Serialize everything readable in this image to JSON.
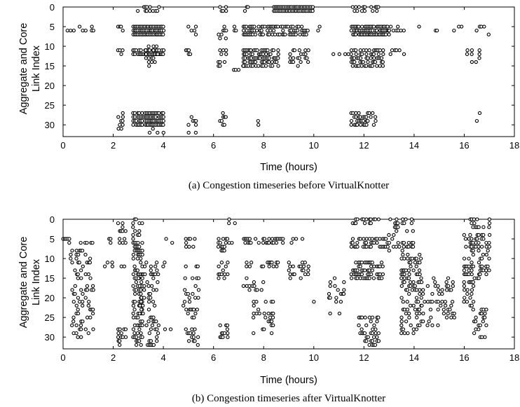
{
  "chart_data": [
    {
      "type": "scatter",
      "caption": "(a) Congestion timeseries before VirtualKnotter",
      "xlabel": "Time (hours)",
      "ylabel_lines": [
        "Aggregate and Core",
        "Link Index"
      ],
      "xlim": [
        0,
        18
      ],
      "ylim": [
        0,
        33
      ],
      "y_inverted": true,
      "grid": false,
      "x_ticks": [
        "0",
        "2",
        "4",
        "6",
        "8",
        "10",
        "12",
        "14",
        "16",
        "18"
      ],
      "y_ticks": [
        "0",
        "5",
        "10",
        "15",
        "20",
        "25",
        "30"
      ],
      "clusters": [
        [
          0.0,
          0.45,
          5,
          6,
          2
        ],
        [
          0.6,
          1.2,
          5,
          6,
          2
        ],
        [
          1.6,
          1.8,
          6,
          6,
          1
        ],
        [
          2.2,
          2.4,
          5,
          6,
          4
        ],
        [
          2.2,
          2.4,
          11,
          12,
          4
        ],
        [
          2.2,
          2.4,
          27,
          31,
          3
        ],
        [
          2.8,
          4.0,
          0,
          1,
          3
        ],
        [
          2.8,
          4.0,
          5,
          7,
          10
        ],
        [
          2.8,
          4.0,
          11,
          12,
          9
        ],
        [
          2.8,
          4.0,
          27,
          30,
          9
        ],
        [
          3.3,
          3.8,
          10,
          15,
          3
        ],
        [
          3.4,
          4.0,
          31,
          32,
          1
        ],
        [
          5.0,
          5.3,
          5,
          7,
          3
        ],
        [
          4.9,
          5.3,
          11,
          12,
          3
        ],
        [
          5.0,
          5.3,
          28,
          32,
          2
        ],
        [
          6.2,
          6.5,
          0,
          1,
          3
        ],
        [
          6.2,
          6.5,
          5,
          8,
          3
        ],
        [
          6.2,
          6.5,
          11,
          15,
          3
        ],
        [
          6.2,
          6.5,
          27,
          30,
          3
        ],
        [
          6.6,
          7.0,
          5,
          6,
          2
        ],
        [
          6.7,
          7.3,
          15,
          17,
          2
        ],
        [
          7.2,
          7.5,
          0,
          1,
          3
        ],
        [
          7.2,
          8.8,
          5,
          7,
          6
        ],
        [
          7.2,
          8.6,
          11,
          15,
          5
        ],
        [
          7.6,
          7.8,
          28,
          30,
          2
        ],
        [
          8.4,
          10.0,
          0,
          1,
          10
        ],
        [
          8.8,
          9.8,
          5,
          7,
          5
        ],
        [
          9.0,
          9.8,
          11,
          15,
          3
        ],
        [
          10.0,
          10.3,
          5,
          6,
          2
        ],
        [
          10.6,
          11.4,
          12,
          12,
          3
        ],
        [
          11.5,
          12.6,
          0,
          1,
          4
        ],
        [
          11.5,
          13.0,
          5,
          7,
          8
        ],
        [
          11.5,
          12.8,
          11,
          15,
          6
        ],
        [
          11.5,
          12.5,
          27,
          30,
          5
        ],
        [
          13.0,
          13.7,
          5,
          6,
          3
        ],
        [
          13.0,
          13.6,
          11,
          12,
          2
        ],
        [
          14.2,
          14.6,
          5,
          6,
          2
        ],
        [
          14.8,
          15.3,
          6,
          6,
          2
        ],
        [
          15.6,
          16.0,
          5,
          6,
          2
        ],
        [
          16.0,
          16.3,
          11,
          12,
          2
        ],
        [
          16.5,
          17.0,
          5,
          7,
          3
        ],
        [
          16.3,
          16.7,
          11,
          15,
          2
        ],
        [
          16.5,
          16.8,
          27,
          29,
          2
        ]
      ]
    },
    {
      "type": "scatter",
      "caption": "(b) Congestion timeseries after VirtualKnotter",
      "xlabel": "Time (hours)",
      "ylabel_lines": [
        "Aggregate and Core",
        "Link Index"
      ],
      "xlim": [
        0,
        18
      ],
      "ylim": [
        0,
        33
      ],
      "y_inverted": true,
      "grid": false,
      "x_ticks": [
        "0",
        "2",
        "4",
        "6",
        "8",
        "10",
        "12",
        "14",
        "16",
        "18"
      ],
      "y_ticks": [
        "0",
        "5",
        "10",
        "15",
        "20",
        "25",
        "30"
      ],
      "clusters": [
        [
          0.0,
          0.5,
          5,
          6,
          2
        ],
        [
          0.7,
          1.3,
          6,
          6,
          2
        ],
        [
          0.3,
          1.2,
          8,
          30,
          2
        ],
        [
          1.6,
          2.0,
          5,
          6,
          2
        ],
        [
          1.6,
          2.0,
          11,
          12,
          2
        ],
        [
          2.2,
          2.5,
          1,
          6,
          3
        ],
        [
          2.2,
          2.6,
          11,
          12,
          3
        ],
        [
          2.2,
          2.5,
          27,
          32,
          3
        ],
        [
          2.8,
          3.2,
          0,
          32,
          5
        ],
        [
          3.2,
          3.8,
          11,
          14,
          3
        ],
        [
          3.2,
          3.8,
          27,
          32,
          3
        ],
        [
          3.0,
          3.8,
          15,
          26,
          2
        ],
        [
          4.0,
          4.5,
          5,
          6,
          2
        ],
        [
          4.0,
          4.4,
          11,
          12,
          2
        ],
        [
          4.0,
          4.4,
          27,
          28,
          2
        ],
        [
          4.9,
          5.4,
          5,
          7,
          3
        ],
        [
          4.9,
          5.4,
          11,
          12,
          3
        ],
        [
          4.9,
          5.4,
          28,
          32,
          3
        ],
        [
          4.8,
          5.4,
          15,
          25,
          2
        ],
        [
          6.2,
          6.6,
          5,
          8,
          3
        ],
        [
          6.2,
          6.6,
          11,
          15,
          3
        ],
        [
          6.2,
          6.6,
          27,
          30,
          3
        ],
        [
          6.5,
          6.9,
          0,
          6,
          2
        ],
        [
          7.2,
          8.8,
          5,
          6,
          5
        ],
        [
          7.2,
          8.6,
          11,
          12,
          4
        ],
        [
          7.6,
          8.4,
          21,
          29,
          2
        ],
        [
          7.2,
          8.0,
          15,
          18,
          2
        ],
        [
          9.0,
          9.8,
          5,
          6,
          3
        ],
        [
          9.0,
          9.8,
          11,
          15,
          3
        ],
        [
          10.0,
          10.5,
          21,
          21,
          2
        ],
        [
          10.6,
          11.2,
          15,
          24,
          2
        ],
        [
          11.5,
          12.6,
          0,
          1,
          4
        ],
        [
          11.5,
          13.0,
          5,
          7,
          6
        ],
        [
          11.5,
          12.8,
          11,
          15,
          5
        ],
        [
          11.8,
          12.6,
          25,
          32,
          3
        ],
        [
          13.0,
          14.0,
          0,
          8,
          2
        ],
        [
          13.5,
          14.3,
          9,
          29,
          3
        ],
        [
          14.3,
          15.0,
          15,
          27,
          2
        ],
        [
          15.0,
          15.6,
          15,
          25,
          2
        ],
        [
          16.0,
          16.4,
          0,
          23,
          3
        ],
        [
          16.4,
          17.0,
          0,
          15,
          3
        ],
        [
          16.4,
          16.9,
          23,
          30,
          3
        ]
      ]
    }
  ]
}
